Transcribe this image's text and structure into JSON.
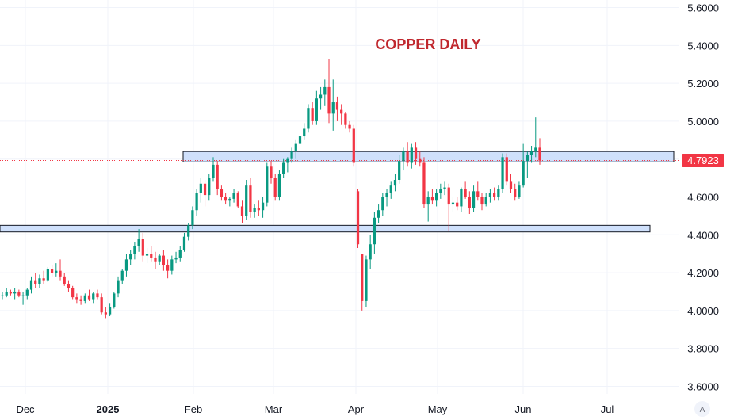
{
  "chart_data": {
    "type": "candlestick",
    "title": "COPPER DAILY",
    "xlabel": "",
    "ylabel": "",
    "ylim": [
      3.56,
      5.64
    ],
    "y_ticks": [
      "5.6000",
      "5.4000",
      "5.2000",
      "5.0000",
      "4.8000",
      "4.6000",
      "4.4000",
      "4.2000",
      "4.0000",
      "3.8000",
      "3.6000"
    ],
    "x_ticks": [
      {
        "label": "Dec",
        "bold": false
      },
      {
        "label": "2025",
        "bold": true
      },
      {
        "label": "Feb",
        "bold": false
      },
      {
        "label": "Mar",
        "bold": false
      },
      {
        "label": "Apr",
        "bold": false
      },
      {
        "label": "May",
        "bold": false
      },
      {
        "label": "Jun",
        "bold": false
      },
      {
        "label": "Jul",
        "bold": false
      }
    ],
    "last_price": "4.7923",
    "last_price_value": 4.7923,
    "zones": [
      {
        "low": 4.785,
        "high": 4.84
      },
      {
        "low": 4.415,
        "high": 4.45
      }
    ],
    "grid": true,
    "colors": {
      "up": "#089981",
      "down": "#f23645",
      "title": "#c0272d",
      "zone_fill": "#cfe0fb",
      "zone_border": "#131722",
      "grid": "#f0f3fa",
      "price_tag": "#f23645"
    },
    "candles": [
      [
        4.08,
        4.1,
        4.06,
        4.08
      ],
      [
        4.08,
        4.12,
        4.07,
        4.1
      ],
      [
        4.1,
        4.11,
        4.08,
        4.09
      ],
      [
        4.09,
        4.12,
        4.06,
        4.1
      ],
      [
        4.1,
        4.11,
        4.07,
        4.08
      ],
      [
        4.08,
        4.1,
        4.03,
        4.08
      ],
      [
        4.08,
        4.12,
        4.06,
        4.11
      ],
      [
        4.11,
        4.18,
        4.09,
        4.16
      ],
      [
        4.16,
        4.2,
        4.12,
        4.14
      ],
      [
        4.14,
        4.19,
        4.12,
        4.17
      ],
      [
        4.17,
        4.21,
        4.14,
        4.16
      ],
      [
        4.16,
        4.23,
        4.15,
        4.22
      ],
      [
        4.22,
        4.24,
        4.18,
        4.2
      ],
      [
        4.2,
        4.25,
        4.18,
        4.21
      ],
      [
        4.21,
        4.27,
        4.16,
        4.18
      ],
      [
        4.18,
        4.2,
        4.13,
        4.14
      ],
      [
        4.14,
        4.16,
        4.1,
        4.12
      ],
      [
        4.12,
        4.13,
        4.06,
        4.07
      ],
      [
        4.07,
        4.09,
        4.04,
        4.06
      ],
      [
        4.06,
        4.08,
        4.03,
        4.05
      ],
      [
        4.05,
        4.09,
        4.04,
        4.08
      ],
      [
        4.08,
        4.11,
        4.05,
        4.06
      ],
      [
        4.06,
        4.1,
        4.04,
        4.09
      ],
      [
        4.09,
        4.11,
        4.06,
        4.07
      ],
      [
        4.07,
        4.09,
        3.98,
        3.99
      ],
      [
        3.99,
        4.02,
        3.96,
        3.98
      ],
      [
        3.98,
        4.04,
        3.97,
        4.02
      ],
      [
        4.02,
        4.1,
        4.01,
        4.09
      ],
      [
        4.09,
        4.18,
        4.07,
        4.16
      ],
      [
        4.16,
        4.22,
        4.14,
        4.21
      ],
      [
        4.21,
        4.3,
        4.18,
        4.27
      ],
      [
        4.27,
        4.32,
        4.24,
        4.3
      ],
      [
        4.3,
        4.36,
        4.27,
        4.34
      ],
      [
        4.34,
        4.43,
        4.31,
        4.38
      ],
      [
        4.38,
        4.41,
        4.26,
        4.29
      ],
      [
        4.29,
        4.33,
        4.25,
        4.3
      ],
      [
        4.3,
        4.34,
        4.26,
        4.28
      ],
      [
        4.28,
        4.31,
        4.22,
        4.26
      ],
      [
        4.26,
        4.3,
        4.24,
        4.29
      ],
      [
        4.29,
        4.32,
        4.21,
        4.24
      ],
      [
        4.24,
        4.27,
        4.17,
        4.21
      ],
      [
        4.21,
        4.29,
        4.19,
        4.27
      ],
      [
        4.27,
        4.31,
        4.25,
        4.28
      ],
      [
        4.28,
        4.34,
        4.26,
        4.32
      ],
      [
        4.32,
        4.41,
        4.31,
        4.39
      ],
      [
        4.39,
        4.46,
        4.37,
        4.45
      ],
      [
        4.45,
        4.55,
        4.43,
        4.53
      ],
      [
        4.53,
        4.64,
        4.5,
        4.62
      ],
      [
        4.62,
        4.7,
        4.57,
        4.67
      ],
      [
        4.67,
        4.69,
        4.55,
        4.61
      ],
      [
        4.61,
        4.72,
        4.58,
        4.7
      ],
      [
        4.7,
        4.81,
        4.68,
        4.77
      ],
      [
        4.77,
        4.79,
        4.61,
        4.64
      ],
      [
        4.64,
        4.66,
        4.58,
        4.6
      ],
      [
        4.6,
        4.62,
        4.56,
        4.58
      ],
      [
        4.58,
        4.6,
        4.55,
        4.59
      ],
      [
        4.59,
        4.64,
        4.57,
        4.62
      ],
      [
        4.62,
        4.63,
        4.54,
        4.55
      ],
      [
        4.55,
        4.58,
        4.46,
        4.5
      ],
      [
        4.5,
        4.69,
        4.48,
        4.66
      ],
      [
        4.66,
        4.7,
        4.49,
        4.52
      ],
      [
        4.52,
        4.56,
        4.49,
        4.54
      ],
      [
        4.54,
        4.58,
        4.5,
        4.53
      ],
      [
        4.53,
        4.6,
        4.49,
        4.57
      ],
      [
        4.57,
        4.78,
        4.55,
        4.76
      ],
      [
        4.76,
        4.79,
        4.67,
        4.7
      ],
      [
        4.7,
        4.72,
        4.58,
        4.6
      ],
      [
        4.6,
        4.74,
        4.58,
        4.72
      ],
      [
        4.72,
        4.8,
        4.7,
        4.78
      ],
      [
        4.78,
        4.81,
        4.73,
        4.8
      ],
      [
        4.8,
        4.86,
        4.78,
        4.84
      ],
      [
        4.84,
        4.9,
        4.8,
        4.88
      ],
      [
        4.88,
        4.94,
        4.85,
        4.92
      ],
      [
        4.92,
        4.99,
        4.9,
        4.96
      ],
      [
        4.96,
        5.09,
        4.94,
        5.07
      ],
      [
        5.07,
        5.1,
        4.98,
        5.0
      ],
      [
        5.0,
        5.16,
        4.98,
        5.12
      ],
      [
        5.12,
        5.18,
        5.06,
        5.14
      ],
      [
        5.14,
        5.22,
        5.08,
        5.18
      ],
      [
        5.18,
        5.33,
        4.99,
        5.04
      ],
      [
        5.04,
        5.22,
        4.95,
        5.1
      ],
      [
        5.1,
        5.13,
        5.0,
        5.06
      ],
      [
        5.06,
        5.09,
        4.98,
        5.04
      ],
      [
        5.04,
        5.05,
        4.96,
        4.98
      ],
      [
        4.98,
        5.0,
        4.94,
        4.96
      ],
      [
        4.96,
        4.98,
        4.76,
        4.78
      ],
      [
        4.63,
        4.64,
        4.33,
        4.35
      ],
      [
        4.3,
        4.3,
        4.0,
        4.05
      ],
      [
        4.05,
        4.29,
        4.02,
        4.27
      ],
      [
        4.27,
        4.4,
        4.22,
        4.35
      ],
      [
        4.35,
        4.52,
        4.3,
        4.49
      ],
      [
        4.49,
        4.56,
        4.46,
        4.53
      ],
      [
        4.53,
        4.62,
        4.5,
        4.6
      ],
      [
        4.6,
        4.64,
        4.55,
        4.62
      ],
      [
        4.62,
        4.68,
        4.59,
        4.66
      ],
      [
        4.66,
        4.72,
        4.63,
        4.69
      ],
      [
        4.69,
        4.82,
        4.67,
        4.79
      ],
      [
        4.79,
        4.86,
        4.74,
        4.84
      ],
      [
        4.84,
        4.89,
        4.76,
        4.78
      ],
      [
        4.78,
        4.88,
        4.75,
        4.86
      ],
      [
        4.86,
        4.89,
        4.77,
        4.8
      ],
      [
        4.8,
        4.84,
        4.76,
        4.78
      ],
      [
        4.78,
        4.81,
        4.54,
        4.56
      ],
      [
        4.56,
        4.63,
        4.47,
        4.6
      ],
      [
        4.6,
        4.64,
        4.56,
        4.58
      ],
      [
        4.58,
        4.64,
        4.55,
        4.62
      ],
      [
        4.62,
        4.67,
        4.59,
        4.64
      ],
      [
        4.64,
        4.68,
        4.61,
        4.65
      ],
      [
        4.65,
        4.67,
        4.42,
        4.56
      ],
      [
        4.56,
        4.6,
        4.52,
        4.57
      ],
      [
        4.57,
        4.6,
        4.53,
        4.55
      ],
      [
        4.55,
        4.65,
        4.52,
        4.64
      ],
      [
        4.64,
        4.68,
        4.59,
        4.6
      ],
      [
        4.6,
        4.63,
        4.51,
        4.54
      ],
      [
        4.54,
        4.66,
        4.52,
        4.63
      ],
      [
        4.63,
        4.68,
        4.58,
        4.6
      ],
      [
        4.6,
        4.62,
        4.53,
        4.56
      ],
      [
        4.56,
        4.62,
        4.55,
        4.6
      ],
      [
        4.6,
        4.64,
        4.57,
        4.62
      ],
      [
        4.62,
        4.65,
        4.58,
        4.6
      ],
      [
        4.6,
        4.66,
        4.58,
        4.64
      ],
      [
        4.64,
        4.83,
        4.62,
        4.81
      ],
      [
        4.81,
        4.83,
        4.66,
        4.68
      ],
      [
        4.68,
        4.72,
        4.62,
        4.64
      ],
      [
        4.64,
        4.67,
        4.58,
        4.6
      ],
      [
        4.6,
        4.68,
        4.59,
        4.66
      ],
      [
        4.66,
        4.88,
        4.65,
        4.79
      ],
      [
        4.79,
        4.84,
        4.7,
        4.82
      ],
      [
        4.82,
        4.87,
        4.78,
        4.84
      ],
      [
        4.84,
        5.02,
        4.81,
        4.86
      ],
      [
        4.86,
        4.91,
        4.77,
        4.7923
      ]
    ]
  }
}
